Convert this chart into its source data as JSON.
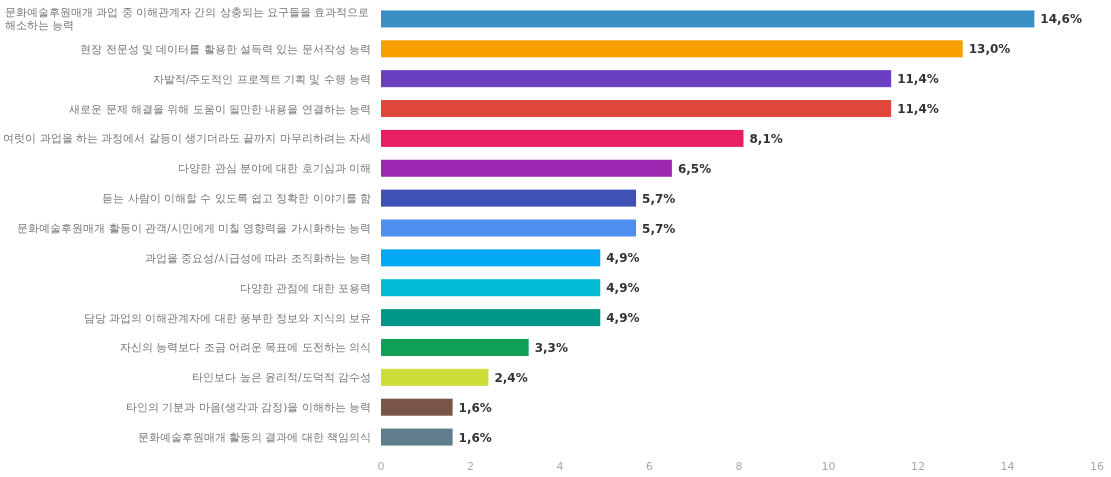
{
  "chart_data": {
    "type": "bar",
    "orientation": "horizontal",
    "categories": [
      "문화예술후원매개 과업 중 이해관계자 간의 상충되는 요구들을 효과적으로 해소하는 능력",
      "현장 전문성 및 데이터를 활용한 설득력 있는 문서작성 능력",
      "자발적/주도적인 프로젝트 기획 및 수행 능력",
      "새로운 문제 해결을 위해 도움이 될만한 내용을 연결하는 능력",
      "여럿이 과업을 하는 과정에서 갈등이 생기더라도 끝까지 마무리하려는 자세",
      "다양한 관심 분야에 대한 호기심과 이해",
      "듣는 사람이 이해할 수 있도록 쉽고 정확한 이야기를 함",
      "문화예술후원매개 활동이 관객/시민에게 미칠 영향력을 가시화하는 능력",
      "과업을 중요성/시급성에 따라 조직화하는 능력",
      "다양한 관점에 대한 포용력",
      "담당 과업의 이해관계자에 대한 풍부한 정보와 지식의 보유",
      "자신의 능력보다 조금 어려운 목표에 도전하는 의식",
      "타인보다 높은 윤리적/도덕적 감수성",
      "타인의 기분과 마음(생각과 감정)을 이해하는 능력",
      "문화예술후원매개 활동의 결과에 대한 책임의식"
    ],
    "values": [
      14.6,
      13.0,
      11.4,
      11.4,
      8.1,
      6.5,
      5.7,
      5.7,
      4.9,
      4.9,
      4.9,
      3.3,
      2.4,
      1.6,
      1.6
    ],
    "value_labels": [
      "14,6%",
      "13,0%",
      "11,4%",
      "11,4%",
      "8,1%",
      "6,5%",
      "5,7%",
      "5,7%",
      "4,9%",
      "4,9%",
      "4,9%",
      "3,3%",
      "2,4%",
      "1,6%",
      "1,6%"
    ],
    "colors": [
      "#3a8fc4",
      "#f9a000",
      "#6a3fc0",
      "#e0473a",
      "#e91e63",
      "#9c27b0",
      "#3f51b5",
      "#4f8ff0",
      "#03a9f4",
      "#00bcd4",
      "#009688",
      "#0fa058",
      "#cddc39",
      "#795548",
      "#607d8b"
    ],
    "xlim": [
      0,
      16
    ],
    "xticks": [
      0,
      2,
      4,
      6,
      8,
      10,
      12,
      14,
      16
    ]
  }
}
